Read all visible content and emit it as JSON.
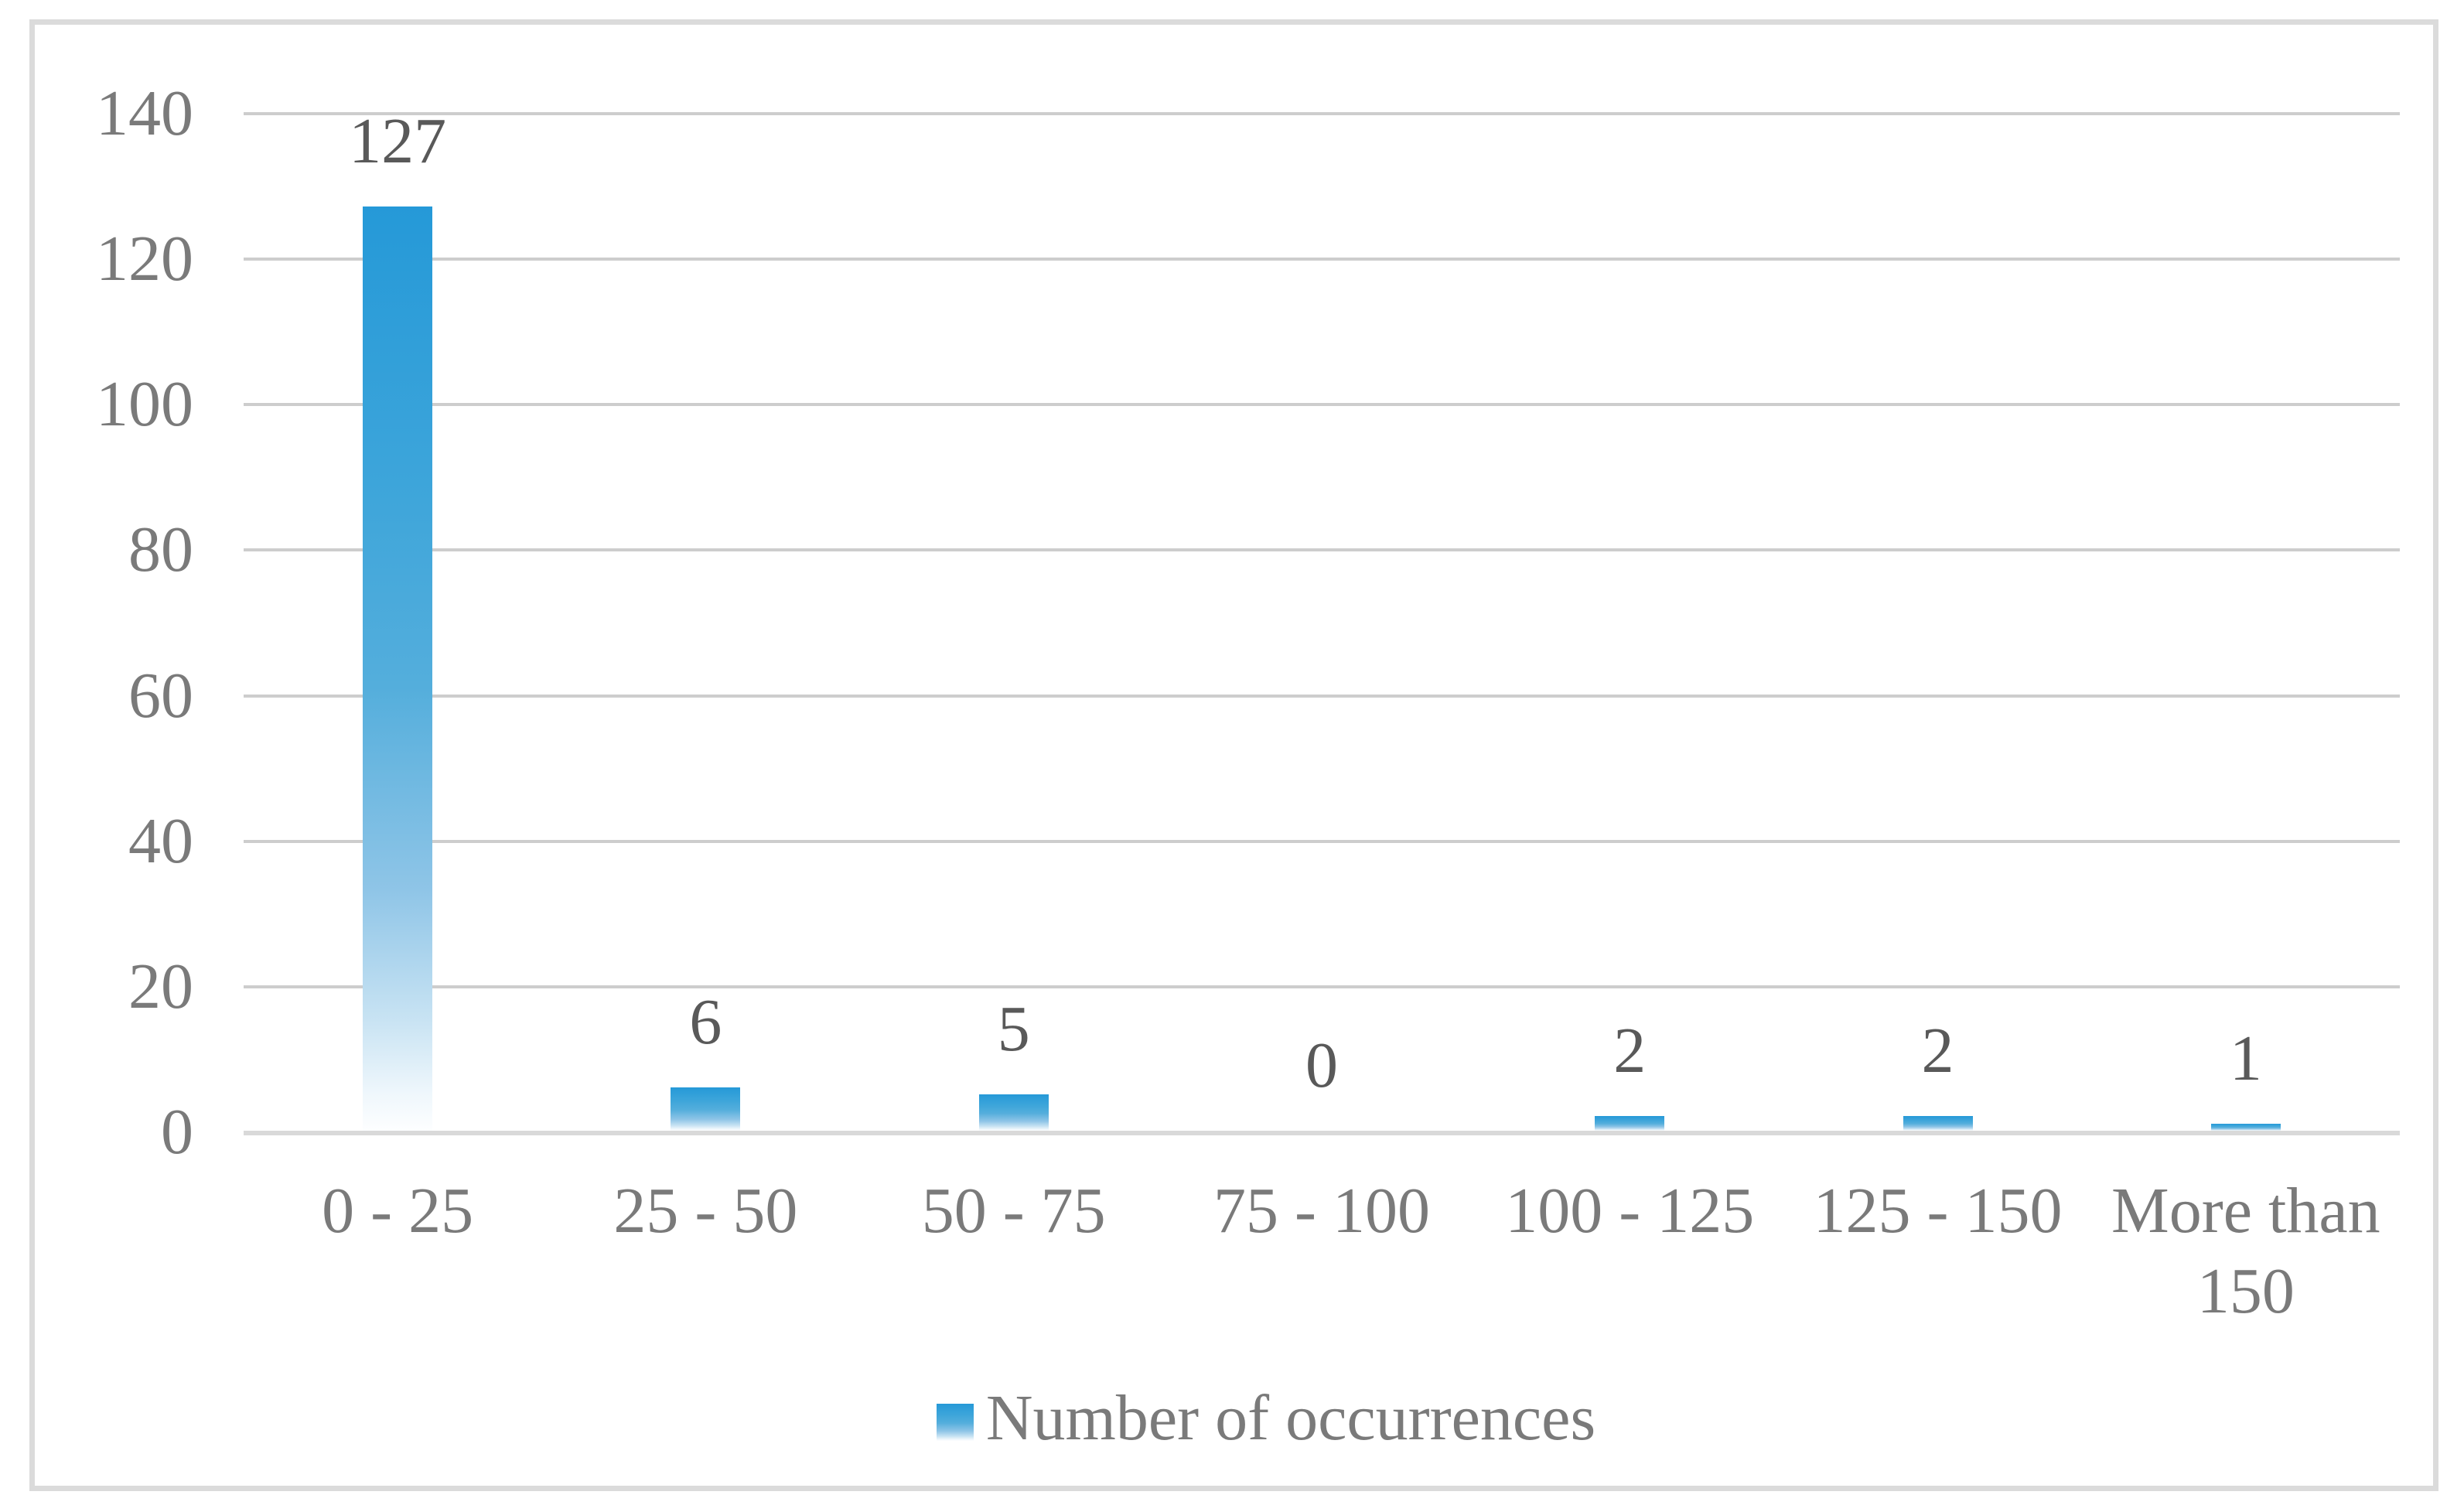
{
  "chart_data": {
    "type": "bar",
    "title": "",
    "xlabel": "",
    "ylabel": "",
    "categories": [
      "0 - 25",
      "25 - 50",
      "50 - 75",
      "75 - 100",
      "100 - 125",
      "125 - 150",
      "More than 150"
    ],
    "values": [
      127,
      6,
      5,
      0,
      2,
      2,
      1
    ],
    "data_labels": [
      "127",
      "6",
      "5",
      "0",
      "2",
      "2",
      "1"
    ],
    "series": [
      {
        "name": "Number of occurrences",
        "values": [
          127,
          6,
          5,
          0,
          2,
          2,
          1
        ]
      }
    ],
    "ylim": [
      0,
      140
    ],
    "yticks": [
      140,
      120,
      100,
      80,
      60,
      40,
      20,
      0
    ],
    "grid": "horizontal",
    "legend_position": "bottom",
    "colors": {
      "bar_gradient_top": "#2599D8",
      "bar_gradient_bottom": "#FDFEFF",
      "gridline": "#CDCDCD",
      "axis_line": "#D9D9D9",
      "axis_text": "#7A7A7A",
      "data_label_text": "#595959",
      "frame_border": "#DBDBDB"
    }
  },
  "legend": {
    "label": "Number of occurrences"
  }
}
